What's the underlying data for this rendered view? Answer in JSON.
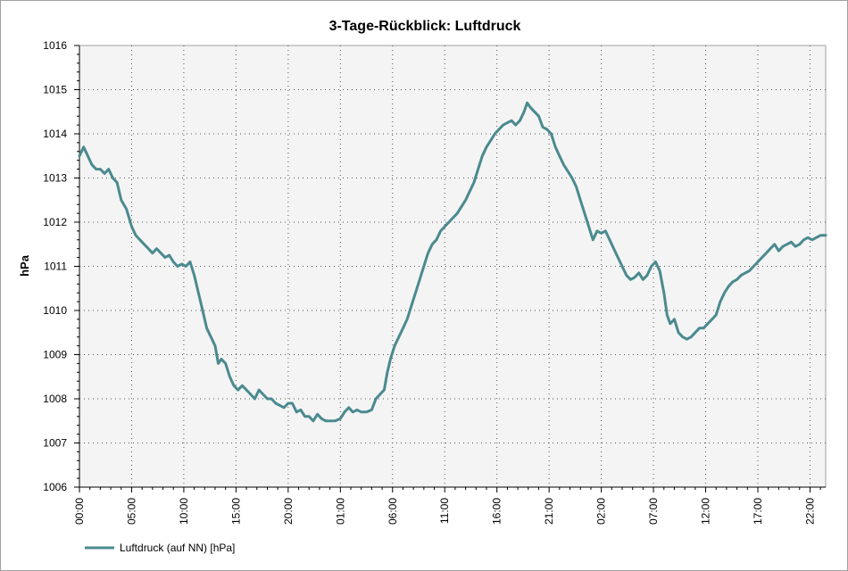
{
  "chart_data": {
    "type": "line",
    "title": "3-Tage-Rückblick: Luftdruck",
    "xlabel": "",
    "ylabel": "hPa",
    "ylim": [
      1006,
      1016
    ],
    "yticks": [
      1006,
      1007,
      1008,
      1009,
      1010,
      1011,
      1012,
      1013,
      1014,
      1015,
      1016
    ],
    "xlim": [
      0,
      71.5
    ],
    "xticks": [
      {
        "x": 0,
        "label": "00:00"
      },
      {
        "x": 5,
        "label": "05:00"
      },
      {
        "x": 10,
        "label": "10:00"
      },
      {
        "x": 15,
        "label": "15:00"
      },
      {
        "x": 20,
        "label": "20:00"
      },
      {
        "x": 25,
        "label": "01:00"
      },
      {
        "x": 30,
        "label": "06:00"
      },
      {
        "x": 35,
        "label": "11:00"
      },
      {
        "x": 40,
        "label": "16:00"
      },
      {
        "x": 45,
        "label": "21:00"
      },
      {
        "x": 50,
        "label": "02:00"
      },
      {
        "x": 55,
        "label": "07:00"
      },
      {
        "x": 60,
        "label": "12:00"
      },
      {
        "x": 65,
        "label": "17:00"
      },
      {
        "x": 70,
        "label": "22:00"
      }
    ],
    "grid": true,
    "legend_position": "bottom-left",
    "series": [
      {
        "name": "Luftdruck (auf NN) [hPa]",
        "color": "#4a8a8f",
        "points": [
          [
            0,
            1013.5
          ],
          [
            0.4,
            1013.7
          ],
          [
            0.8,
            1013.5
          ],
          [
            1.2,
            1013.3
          ],
          [
            1.6,
            1013.2
          ],
          [
            2.0,
            1013.2
          ],
          [
            2.4,
            1013.1
          ],
          [
            2.8,
            1013.2
          ],
          [
            3.2,
            1013.0
          ],
          [
            3.6,
            1012.9
          ],
          [
            4.0,
            1012.5
          ],
          [
            4.5,
            1012.3
          ],
          [
            5.0,
            1011.9
          ],
          [
            5.4,
            1011.7
          ],
          [
            5.8,
            1011.6
          ],
          [
            6.2,
            1011.5
          ],
          [
            6.6,
            1011.4
          ],
          [
            7.0,
            1011.3
          ],
          [
            7.4,
            1011.4
          ],
          [
            7.8,
            1011.3
          ],
          [
            8.2,
            1011.2
          ],
          [
            8.6,
            1011.25
          ],
          [
            9.0,
            1011.1
          ],
          [
            9.4,
            1011.0
          ],
          [
            9.8,
            1011.05
          ],
          [
            10.2,
            1011.0
          ],
          [
            10.6,
            1011.1
          ],
          [
            11.0,
            1010.8
          ],
          [
            11.4,
            1010.4
          ],
          [
            11.8,
            1010.0
          ],
          [
            12.2,
            1009.6
          ],
          [
            12.6,
            1009.4
          ],
          [
            13.0,
            1009.2
          ],
          [
            13.3,
            1008.8
          ],
          [
            13.6,
            1008.9
          ],
          [
            14.0,
            1008.8
          ],
          [
            14.4,
            1008.5
          ],
          [
            14.8,
            1008.3
          ],
          [
            15.2,
            1008.2
          ],
          [
            15.6,
            1008.3
          ],
          [
            16.0,
            1008.2
          ],
          [
            16.4,
            1008.1
          ],
          [
            16.8,
            1008.0
          ],
          [
            17.2,
            1008.2
          ],
          [
            17.6,
            1008.1
          ],
          [
            18.0,
            1008.0
          ],
          [
            18.4,
            1008.0
          ],
          [
            18.8,
            1007.9
          ],
          [
            19.2,
            1007.85
          ],
          [
            19.6,
            1007.8
          ],
          [
            20.0,
            1007.9
          ],
          [
            20.4,
            1007.9
          ],
          [
            20.8,
            1007.7
          ],
          [
            21.2,
            1007.75
          ],
          [
            21.6,
            1007.6
          ],
          [
            22.0,
            1007.6
          ],
          [
            22.4,
            1007.5
          ],
          [
            22.8,
            1007.65
          ],
          [
            23.2,
            1007.55
          ],
          [
            23.6,
            1007.5
          ],
          [
            24.0,
            1007.5
          ],
          [
            24.5,
            1007.5
          ],
          [
            25.0,
            1007.55
          ],
          [
            25.4,
            1007.7
          ],
          [
            25.8,
            1007.8
          ],
          [
            26.2,
            1007.7
          ],
          [
            26.6,
            1007.75
          ],
          [
            27.0,
            1007.7
          ],
          [
            27.5,
            1007.7
          ],
          [
            28.0,
            1007.75
          ],
          [
            28.4,
            1008.0
          ],
          [
            28.8,
            1008.1
          ],
          [
            29.2,
            1008.2
          ],
          [
            29.5,
            1008.6
          ],
          [
            29.8,
            1008.9
          ],
          [
            30.2,
            1009.2
          ],
          [
            30.6,
            1009.4
          ],
          [
            31.0,
            1009.6
          ],
          [
            31.4,
            1009.8
          ],
          [
            31.8,
            1010.1
          ],
          [
            32.2,
            1010.4
          ],
          [
            32.6,
            1010.7
          ],
          [
            33.0,
            1011.0
          ],
          [
            33.4,
            1011.3
          ],
          [
            33.8,
            1011.5
          ],
          [
            34.2,
            1011.6
          ],
          [
            34.6,
            1011.8
          ],
          [
            35.0,
            1011.9
          ],
          [
            35.4,
            1012.0
          ],
          [
            35.8,
            1012.1
          ],
          [
            36.2,
            1012.2
          ],
          [
            36.6,
            1012.35
          ],
          [
            37.0,
            1012.5
          ],
          [
            37.4,
            1012.7
          ],
          [
            37.8,
            1012.9
          ],
          [
            38.2,
            1013.2
          ],
          [
            38.6,
            1013.5
          ],
          [
            39.0,
            1013.7
          ],
          [
            39.4,
            1013.85
          ],
          [
            39.8,
            1014.0
          ],
          [
            40.2,
            1014.1
          ],
          [
            40.6,
            1014.2
          ],
          [
            41.0,
            1014.25
          ],
          [
            41.4,
            1014.3
          ],
          [
            41.8,
            1014.2
          ],
          [
            42.2,
            1014.3
          ],
          [
            42.6,
            1014.5
          ],
          [
            42.9,
            1014.7
          ],
          [
            43.2,
            1014.6
          ],
          [
            43.6,
            1014.5
          ],
          [
            44.0,
            1014.4
          ],
          [
            44.4,
            1014.15
          ],
          [
            44.8,
            1014.1
          ],
          [
            45.2,
            1014.0
          ],
          [
            45.6,
            1013.7
          ],
          [
            46.0,
            1013.5
          ],
          [
            46.4,
            1013.3
          ],
          [
            46.8,
            1013.15
          ],
          [
            47.2,
            1013.0
          ],
          [
            47.6,
            1012.8
          ],
          [
            48.0,
            1012.5
          ],
          [
            48.4,
            1012.2
          ],
          [
            48.8,
            1011.9
          ],
          [
            49.2,
            1011.6
          ],
          [
            49.6,
            1011.8
          ],
          [
            50.0,
            1011.75
          ],
          [
            50.4,
            1011.8
          ],
          [
            50.8,
            1011.6
          ],
          [
            51.2,
            1011.4
          ],
          [
            51.6,
            1011.2
          ],
          [
            52.0,
            1011.0
          ],
          [
            52.4,
            1010.8
          ],
          [
            52.8,
            1010.7
          ],
          [
            53.2,
            1010.75
          ],
          [
            53.6,
            1010.85
          ],
          [
            54.0,
            1010.7
          ],
          [
            54.4,
            1010.8
          ],
          [
            54.8,
            1011.0
          ],
          [
            55.2,
            1011.1
          ],
          [
            55.6,
            1010.9
          ],
          [
            56.0,
            1010.4
          ],
          [
            56.3,
            1009.9
          ],
          [
            56.6,
            1009.7
          ],
          [
            57.0,
            1009.8
          ],
          [
            57.4,
            1009.5
          ],
          [
            57.8,
            1009.4
          ],
          [
            58.2,
            1009.35
          ],
          [
            58.6,
            1009.4
          ],
          [
            59.0,
            1009.5
          ],
          [
            59.4,
            1009.6
          ],
          [
            59.8,
            1009.6
          ],
          [
            60.2,
            1009.7
          ],
          [
            60.6,
            1009.8
          ],
          [
            61.0,
            1009.9
          ],
          [
            61.4,
            1010.2
          ],
          [
            61.8,
            1010.4
          ],
          [
            62.2,
            1010.55
          ],
          [
            62.6,
            1010.65
          ],
          [
            63.0,
            1010.7
          ],
          [
            63.4,
            1010.8
          ],
          [
            63.8,
            1010.85
          ],
          [
            64.2,
            1010.9
          ],
          [
            64.6,
            1011.0
          ],
          [
            65.0,
            1011.1
          ],
          [
            65.4,
            1011.2
          ],
          [
            65.8,
            1011.3
          ],
          [
            66.2,
            1011.4
          ],
          [
            66.6,
            1011.5
          ],
          [
            67.0,
            1011.35
          ],
          [
            67.4,
            1011.45
          ],
          [
            67.8,
            1011.5
          ],
          [
            68.2,
            1011.55
          ],
          [
            68.6,
            1011.45
          ],
          [
            69.0,
            1011.5
          ],
          [
            69.4,
            1011.6
          ],
          [
            69.8,
            1011.65
          ],
          [
            70.2,
            1011.6
          ],
          [
            70.6,
            1011.65
          ],
          [
            71.0,
            1011.7
          ],
          [
            71.5,
            1011.7
          ]
        ]
      }
    ]
  }
}
